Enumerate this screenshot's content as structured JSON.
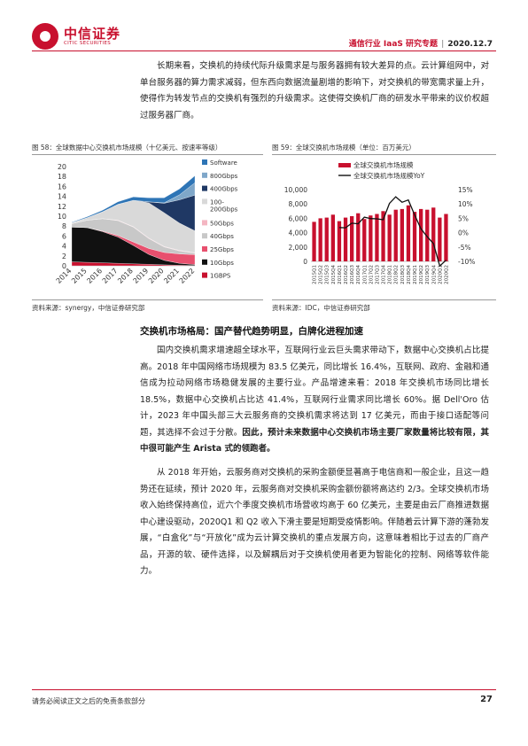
{
  "header": {
    "logo_cn": "中信证券",
    "logo_en": "CITIC SECURITIES",
    "topic": "通信行业 IaaS 研究专题",
    "date": "2020.12.7"
  },
  "paragraph_intro": "长期来看，交换机的持续代际升级需求是与服务器拥有较大差异的点。云计算组网中，对单台服务器的算力需求减弱，但东西向数据流量剧增的影响下，对交换机的带宽需求量上升，使得作为转发节点的交换机有强烈的升级需求。这使得交换机厂商的研发水平带来的议价权超过服务器厂商。",
  "figure58": {
    "caption": "图 58：全球数据中心交换机市场规模（十亿美元、按速率等级）",
    "source": "资料来源：synergy，中信证券研究部"
  },
  "figure59": {
    "caption": "图 59：全球交换机市场规模（单位：百万美元）",
    "source": "资料来源：IDC，中信证券研究部"
  },
  "section": {
    "title": "交换机市场格局：国产替代趋势明显，白牌化进程加速"
  },
  "paragraph_2_pre": "国内交换机需求增速超全球水平，互联网行业云巨头需求带动下，数据中心交换机占比提高。2018 年中国网络市场规模为 83.5 亿美元，同比增长 16.4%，互联网、政府、金融和通信成为拉动网络市场稳健发展的主要行业。产品增速来看：2018 年交换机市场同比增长 18.5%，数据中心交换机占比达 41.4%，互联网行业需求同比增长 60%。据 Dell'Oro 估计，2023 年中国头部三大云服务商的交换机需求将达到 17 亿美元，而由于接口适配等问题，其选择不会过于分散。",
  "paragraph_2_bold": "因此，预计未来数据中心交换机市场主要厂家数量将比较有限，其中很可能产生 Arista 式的领跑者。",
  "paragraph_3": "从 2018 年开始，云服务商对交换机的采购金额便显著高于电信商和一般企业，且这一趋势还在延续，预计 2020 年，云服务商对交换机采购金额份额将高达约 2/3。全球交换机市场收入始终保持高位，近六个季度交换机市场营收均高于 60 亿美元，主要是由云厂商推进数据中心建设驱动，2020Q1 和 Q2 收入下滑主要是短期受疫情影响。伴随着云计算下游的蓬勃发展，“白盒化”与“开放化”成为云计算交换机的重点发展方向，这意味着相比于过去的厂商产品，开源的软、硬件选择，以及解耦后对于交换机使用者更为智能化的控制、网络等软件能力。",
  "footer": {
    "disclaimer": "请务必阅读正文之后的免责条款部分",
    "page": "27"
  },
  "chart_data": [
    {
      "type": "area",
      "stacked": true,
      "x": [
        "2014",
        "2015",
        "2016",
        "2017",
        "2018",
        "2019",
        "2020",
        "2021",
        "2022"
      ],
      "ylim": [
        0,
        20
      ],
      "yticks": [
        0,
        2,
        4,
        6,
        8,
        10,
        12,
        14,
        16,
        18,
        20
      ],
      "grid": false,
      "legend_position": "right",
      "series": [
        {
          "name": "1GBPS",
          "color": "#c8102e",
          "values": [
            0.8,
            0.7,
            0.6,
            0.5,
            0.4,
            0.3,
            0.2,
            0.1,
            0.05
          ]
        },
        {
          "name": "10Gbps",
          "color": "#111111",
          "values": [
            7.0,
            7.0,
            6.3,
            5.3,
            3.7,
            2.0,
            0.9,
            0.4,
            0.2
          ]
        },
        {
          "name": "25Gbps",
          "color": "#e8506e",
          "values": [
            0,
            0,
            0.1,
            0.3,
            0.7,
            1.2,
            1.6,
            1.9,
            2.0
          ]
        },
        {
          "name": "40Gbps",
          "color": "#c8c8c8",
          "values": [
            0.7,
            1.5,
            2.5,
            3.0,
            3.0,
            2.0,
            1.1,
            0.6,
            0.3
          ]
        },
        {
          "name": "50Gbps",
          "color": "#f4b6c2",
          "values": [
            0,
            0,
            0,
            0.1,
            0.1,
            0.1,
            0.1,
            0.1,
            0.1
          ]
        },
        {
          "name": "100-200Gbps",
          "color": "#d9d9d9",
          "values": [
            0.2,
            0.5,
            1.4,
            3.2,
            5.3,
            7.1,
            6.8,
            5.5,
            4.4
          ]
        },
        {
          "name": "400Gbps",
          "color": "#1f3864",
          "values": [
            0,
            0,
            0,
            0,
            0,
            0.2,
            1.9,
            4.7,
            7.2
          ]
        },
        {
          "name": "800Gbps",
          "color": "#7fa7c9",
          "values": [
            0,
            0,
            0,
            0,
            0,
            0,
            0.1,
            1.0,
            2.5
          ]
        },
        {
          "name": "Software",
          "color": "#2e75b6",
          "values": [
            0.1,
            0.2,
            0.3,
            0.5,
            0.7,
            0.8,
            1.0,
            1.2,
            1.4
          ]
        }
      ]
    },
    {
      "type": "bar+line",
      "categories": [
        "2015Q1",
        "2015Q2",
        "2015Q3",
        "2015Q4",
        "2016Q1",
        "2016Q2",
        "2016Q3",
        "2016Q4",
        "2017Q1",
        "2017Q2",
        "2017Q3",
        "2017Q4",
        "2018Q1",
        "2018Q2",
        "2018Q3",
        "2018Q4",
        "2019Q1",
        "2019Q2",
        "2019Q3",
        "2019Q4",
        "2020Q1",
        "2020Q2"
      ],
      "series": [
        {
          "name": "全球交换机市场规模",
          "type": "bar",
          "color": "#c8102e",
          "axis": "left",
          "values": [
            5500,
            6000,
            6100,
            6500,
            5600,
            6100,
            6300,
            6700,
            5900,
            6400,
            6600,
            7000,
            6500,
            7200,
            7300,
            7800,
            6900,
            7300,
            7200,
            7500,
            6100,
            6600
          ]
        },
        {
          "name": "全球交换机市场规模YoY",
          "type": "line",
          "color": "#111111",
          "axis": "right",
          "values": [
            null,
            null,
            null,
            null,
            1.8,
            1.7,
            3.3,
            3.1,
            5.4,
            4.9,
            4.8,
            4.5,
            10.2,
            12.5,
            10.6,
            11.4,
            6.2,
            1.4,
            -1.4,
            -3.8,
            -11.6,
            -9.6
          ]
        }
      ],
      "left_ylim": [
        0,
        10000
      ],
      "left_yticks": [
        "0",
        "2,000",
        "4,000",
        "6,000",
        "8,000",
        "10,000"
      ],
      "right_ylim": [
        -10,
        15
      ],
      "right_yticks": [
        "-10%",
        "-5%",
        "0%",
        "5%",
        "10%",
        "15%"
      ],
      "legend_position": "top"
    }
  ]
}
